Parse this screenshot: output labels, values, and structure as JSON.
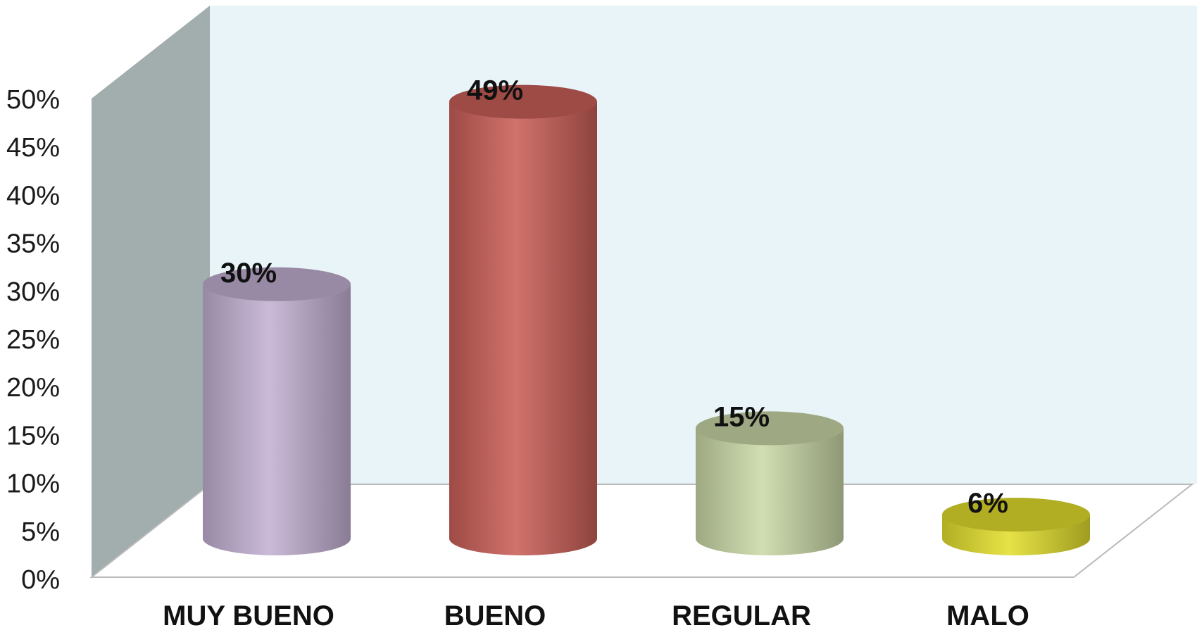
{
  "chart_data": {
    "type": "bar",
    "style": "3d-cylinder",
    "categories": [
      "MUY BUENO",
      "BUENO",
      "REGULAR",
      "MALO"
    ],
    "values": [
      30,
      49,
      15,
      6
    ],
    "data_labels": [
      "30%",
      "49%",
      "15%",
      "6%"
    ],
    "ylim": [
      0,
      50
    ],
    "y_ticks": [
      "0%",
      "5%",
      "10%",
      "15%",
      "20%",
      "25%",
      "30%",
      "35%",
      "40%",
      "45%",
      "50%"
    ],
    "title": "",
    "xlabel": "",
    "ylabel": "",
    "grid": false,
    "legend": "none",
    "colors": [
      "#c3b1d3",
      "#cb5f58",
      "#cbd9a8",
      "#e3df2e"
    ],
    "back_wall_color": "#e8f4f7",
    "side_wall_color": "#a2adad"
  }
}
